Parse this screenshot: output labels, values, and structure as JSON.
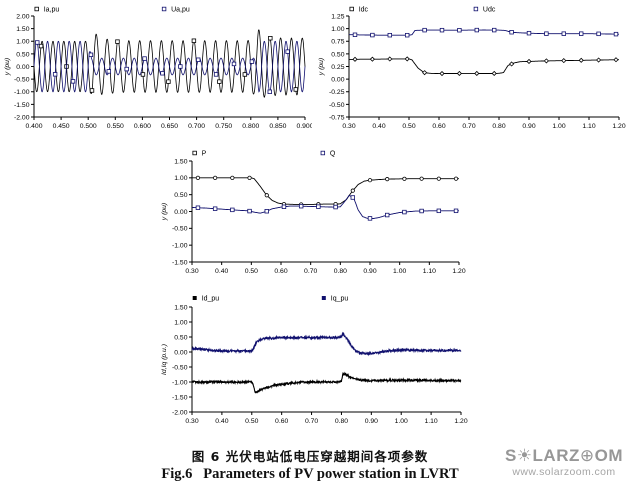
{
  "page": {
    "background": "#ffffff"
  },
  "caption": {
    "zh": "图 6 光伏电站低电压穿越期间各项参数",
    "en": "Fig.6   Parameters of PV power station in LVRT"
  },
  "watermark": {
    "brand_prefix": "S",
    "sun_glyph": "☀",
    "brand_mid": "LARZ",
    "globe_glyph": "⊕",
    "brand_suffix": "OM",
    "url": "www.solarzoom.com"
  },
  "colors": {
    "navy": "#10106e",
    "black": "#000000",
    "watermark_gray": "#979797"
  },
  "chart_data": [
    {
      "id": "wave",
      "type": "line",
      "title": "",
      "xlabel": "",
      "ylabel": "y (pu)",
      "xlim": [
        0.4,
        0.9
      ],
      "ylim": [
        -2.0,
        2.0
      ],
      "grid": false,
      "legend_position": "top",
      "legend_x": [
        0.01,
        0.48
      ],
      "xticks": [
        "0.400",
        "0.450",
        "0.500",
        "0.550",
        "0.600",
        "0.650",
        "0.700",
        "0.750",
        "0.800",
        "0.850",
        "0.900"
      ],
      "yticks": [
        "2.00",
        "1.50",
        "1.00",
        "0.50",
        "0.00",
        "-0.50",
        "-1.00",
        "-1.50",
        "-2.00"
      ],
      "series_type": "sine",
      "frequency_hz": 50,
      "series": [
        {
          "name": "Ia,pu",
          "color": "#000000",
          "phase": 3.1416,
          "width": 0.8,
          "marker": "square-open",
          "marker_dx": 0.047,
          "marker_start": 0.013,
          "envelope": [
            [
              0.4,
              1.0
            ],
            [
              0.5,
              1.0
            ],
            [
              0.505,
              1.06
            ],
            [
              0.511,
              1.4
            ],
            [
              0.52,
              1.12
            ],
            [
              0.56,
              1.02
            ],
            [
              0.79,
              1.02
            ],
            [
              0.8,
              1.04
            ],
            [
              0.806,
              1.1
            ],
            [
              0.813,
              1.5
            ],
            [
              0.824,
              1.22
            ],
            [
              0.85,
              1.13
            ],
            [
              0.9,
              1.12
            ]
          ]
        },
        {
          "name": "Ua,pu",
          "color": "#10106e",
          "phase": 0,
          "width": 0.8,
          "marker": "square-open",
          "marker_dx": 0.033,
          "marker_start": 0.006,
          "envelope": [
            [
              0.4,
              1.0
            ],
            [
              0.501,
              1.0
            ],
            [
              0.506,
              0.33
            ],
            [
              0.809,
              0.33
            ],
            [
              0.815,
              1.0
            ],
            [
              0.9,
              1.0
            ]
          ]
        }
      ]
    },
    {
      "id": "dc",
      "type": "line",
      "title": "",
      "xlabel": "",
      "ylabel": "y (pu)",
      "xlim": [
        0.3,
        1.2
      ],
      "ylim": [
        -0.75,
        1.25
      ],
      "grid": false,
      "legend_position": "top",
      "legend_x": [
        0.01,
        0.47
      ],
      "xticks": [
        "0.30",
        "0.40",
        "0.50",
        "0.60",
        "0.70",
        "0.80",
        "0.90",
        "1.00",
        "1.10",
        "1.20"
      ],
      "yticks": [
        "1.25",
        "1.00",
        "0.75",
        "0.50",
        "0.25",
        "0.00",
        "-0.25",
        "-0.50",
        "-0.75"
      ],
      "series": [
        {
          "name": "Idc",
          "color": "#000000",
          "width": 0.9,
          "marker": "diamond-open",
          "legend_marker": "square-open",
          "marker_dx": 0.058,
          "marker_start": 0.02,
          "points": [
            [
              0.3,
              0.39
            ],
            [
              0.35,
              0.395
            ],
            [
              0.4,
              0.395
            ],
            [
              0.45,
              0.4
            ],
            [
              0.5,
              0.4
            ],
            [
              0.51,
              0.38
            ],
            [
              0.53,
              0.22
            ],
            [
              0.55,
              0.13
            ],
            [
              0.57,
              0.115
            ],
            [
              0.6,
              0.11
            ],
            [
              0.65,
              0.112
            ],
            [
              0.7,
              0.113
            ],
            [
              0.75,
              0.112
            ],
            [
              0.78,
              0.112
            ],
            [
              0.8,
              0.115
            ],
            [
              0.815,
              0.13
            ],
            [
              0.83,
              0.27
            ],
            [
              0.85,
              0.32
            ],
            [
              0.87,
              0.345
            ],
            [
              0.9,
              0.35
            ],
            [
              0.95,
              0.36
            ],
            [
              1.0,
              0.365
            ],
            [
              1.05,
              0.37
            ],
            [
              1.1,
              0.375
            ],
            [
              1.15,
              0.38
            ],
            [
              1.2,
              0.385
            ]
          ]
        },
        {
          "name": "Udc",
          "color": "#10106e",
          "width": 0.9,
          "marker": "square-open",
          "marker_dx": 0.058,
          "marker_start": 0.02,
          "points": [
            [
              0.3,
              0.88
            ],
            [
              0.35,
              0.875
            ],
            [
              0.4,
              0.87
            ],
            [
              0.45,
              0.87
            ],
            [
              0.5,
              0.87
            ],
            [
              0.51,
              0.88
            ],
            [
              0.52,
              0.965
            ],
            [
              0.55,
              0.97
            ],
            [
              0.6,
              0.97
            ],
            [
              0.65,
              0.968
            ],
            [
              0.7,
              0.97
            ],
            [
              0.75,
              0.972
            ],
            [
              0.8,
              0.97
            ],
            [
              0.82,
              0.965
            ],
            [
              0.84,
              0.93
            ],
            [
              0.86,
              0.92
            ],
            [
              0.88,
              0.915
            ],
            [
              0.9,
              0.91
            ],
            [
              0.95,
              0.9
            ],
            [
              1.0,
              0.9
            ],
            [
              1.05,
              0.9
            ],
            [
              1.1,
              0.9
            ],
            [
              1.15,
              0.895
            ],
            [
              1.2,
              0.89
            ]
          ]
        }
      ]
    },
    {
      "id": "pq",
      "type": "line",
      "title": "",
      "xlabel": "",
      "ylabel": "y (pu)",
      "xlim": [
        0.3,
        1.2
      ],
      "ylim": [
        -1.5,
        1.5
      ],
      "grid": false,
      "legend_position": "top",
      "legend_x": [
        0.01,
        0.49
      ],
      "xticks": [
        "0.30",
        "0.40",
        "0.50",
        "0.60",
        "0.70",
        "0.80",
        "0.90",
        "1.00",
        "1.10",
        "1.20"
      ],
      "yticks": [
        "1.50",
        "1.00",
        "0.50",
        "0.00",
        "-0.50",
        "-1.00",
        "-1.50"
      ],
      "series": [
        {
          "name": "P",
          "color": "#000000",
          "width": 0.9,
          "marker": "circle-open",
          "legend_marker": "square-open",
          "marker_dx": 0.058,
          "marker_start": 0.02,
          "points": [
            [
              0.3,
              1.0
            ],
            [
              0.4,
              1.0
            ],
            [
              0.45,
              1.0
            ],
            [
              0.5,
              1.0
            ],
            [
              0.51,
              0.97
            ],
            [
              0.53,
              0.75
            ],
            [
              0.55,
              0.5
            ],
            [
              0.57,
              0.33
            ],
            [
              0.59,
              0.25
            ],
            [
              0.61,
              0.22
            ],
            [
              0.65,
              0.21
            ],
            [
              0.7,
              0.21
            ],
            [
              0.75,
              0.22
            ],
            [
              0.79,
              0.22
            ],
            [
              0.8,
              0.23
            ],
            [
              0.82,
              0.35
            ],
            [
              0.84,
              0.6
            ],
            [
              0.86,
              0.8
            ],
            [
              0.88,
              0.9
            ],
            [
              0.9,
              0.93
            ],
            [
              0.95,
              0.96
            ],
            [
              1.0,
              0.97
            ],
            [
              1.05,
              0.975
            ],
            [
              1.1,
              0.975
            ],
            [
              1.15,
              0.975
            ],
            [
              1.2,
              0.975
            ]
          ]
        },
        {
          "name": "Q",
          "color": "#10106e",
          "width": 0.9,
          "marker": "square-open",
          "marker_dx": 0.058,
          "marker_start": 0.02,
          "points": [
            [
              0.3,
              0.12
            ],
            [
              0.35,
              0.1
            ],
            [
              0.4,
              0.07
            ],
            [
              0.45,
              0.04
            ],
            [
              0.49,
              0.02
            ],
            [
              0.51,
              -0.02
            ],
            [
              0.53,
              -0.05
            ],
            [
              0.55,
              0.0
            ],
            [
              0.57,
              0.08
            ],
            [
              0.6,
              0.13
            ],
            [
              0.63,
              0.16
            ],
            [
              0.66,
              0.16
            ],
            [
              0.7,
              0.15
            ],
            [
              0.74,
              0.14
            ],
            [
              0.78,
              0.13
            ],
            [
              0.8,
              0.14
            ],
            [
              0.815,
              0.3
            ],
            [
              0.83,
              0.48
            ],
            [
              0.845,
              0.4
            ],
            [
              0.86,
              0.05
            ],
            [
              0.875,
              -0.15
            ],
            [
              0.89,
              -0.2
            ],
            [
              0.91,
              -0.21
            ],
            [
              0.93,
              -0.18
            ],
            [
              0.96,
              -0.1
            ],
            [
              1.0,
              -0.03
            ],
            [
              1.05,
              0.01
            ],
            [
              1.1,
              0.02
            ],
            [
              1.15,
              0.02
            ],
            [
              1.2,
              0.02
            ]
          ]
        }
      ]
    },
    {
      "id": "idq",
      "type": "line",
      "title": "",
      "xlabel": "",
      "ylabel": "Id,Iq (p.u.)",
      "xlim": [
        0.3,
        1.2
      ],
      "ylim": [
        -2.0,
        1.5
      ],
      "grid": false,
      "legend_position": "top",
      "legend_x": [
        0.01,
        0.49
      ],
      "xticks": [
        "0.30",
        "0.40",
        "0.50",
        "0.60",
        "0.70",
        "0.80",
        "0.90",
        "1.00",
        "1.10",
        "1.20"
      ],
      "yticks": [
        "1.50",
        "1.00",
        "0.50",
        "0.00",
        "-0.50",
        "-1.00",
        "-1.50",
        "-2.00"
      ],
      "series": [
        {
          "name": "Id_pu",
          "color": "#000000",
          "width": 1.1,
          "noise": 0.035,
          "legend_marker": "square-filled",
          "points": [
            [
              0.3,
              -1.0
            ],
            [
              0.4,
              -1.0
            ],
            [
              0.5,
              -1.0
            ],
            [
              0.505,
              -1.1
            ],
            [
              0.51,
              -1.33
            ],
            [
              0.52,
              -1.32
            ],
            [
              0.53,
              -1.25
            ],
            [
              0.56,
              -1.15
            ],
            [
              0.6,
              -1.07
            ],
            [
              0.65,
              -1.02
            ],
            [
              0.7,
              -1.0
            ],
            [
              0.75,
              -1.0
            ],
            [
              0.79,
              -1.0
            ],
            [
              0.8,
              -0.98
            ],
            [
              0.805,
              -0.72
            ],
            [
              0.815,
              -0.75
            ],
            [
              0.825,
              -0.82
            ],
            [
              0.84,
              -0.88
            ],
            [
              0.86,
              -0.93
            ],
            [
              0.88,
              -0.95
            ],
            [
              0.9,
              -0.95
            ],
            [
              1.0,
              -0.94
            ],
            [
              1.1,
              -0.95
            ],
            [
              1.2,
              -0.95
            ]
          ]
        },
        {
          "name": "Iq_pu",
          "color": "#10106e",
          "width": 1.1,
          "noise": 0.035,
          "legend_marker": "square-filled",
          "points": [
            [
              0.3,
              0.12
            ],
            [
              0.34,
              0.08
            ],
            [
              0.38,
              0.04
            ],
            [
              0.42,
              0.03
            ],
            [
              0.46,
              0.03
            ],
            [
              0.5,
              0.03
            ],
            [
              0.505,
              0.1
            ],
            [
              0.515,
              0.32
            ],
            [
              0.53,
              0.42
            ],
            [
              0.545,
              0.47
            ],
            [
              0.56,
              0.45
            ],
            [
              0.58,
              0.48
            ],
            [
              0.6,
              0.48
            ],
            [
              0.65,
              0.48
            ],
            [
              0.7,
              0.48
            ],
            [
              0.75,
              0.48
            ],
            [
              0.79,
              0.48
            ],
            [
              0.8,
              0.5
            ],
            [
              0.805,
              0.62
            ],
            [
              0.81,
              0.55
            ],
            [
              0.82,
              0.42
            ],
            [
              0.83,
              0.25
            ],
            [
              0.845,
              0.05
            ],
            [
              0.86,
              -0.03
            ],
            [
              0.88,
              -0.05
            ],
            [
              0.9,
              -0.04
            ],
            [
              0.93,
              0.0
            ],
            [
              0.96,
              0.04
            ],
            [
              1.0,
              0.07
            ],
            [
              1.05,
              0.06
            ],
            [
              1.1,
              0.05
            ],
            [
              1.15,
              0.05
            ],
            [
              1.2,
              0.05
            ]
          ]
        }
      ]
    }
  ]
}
